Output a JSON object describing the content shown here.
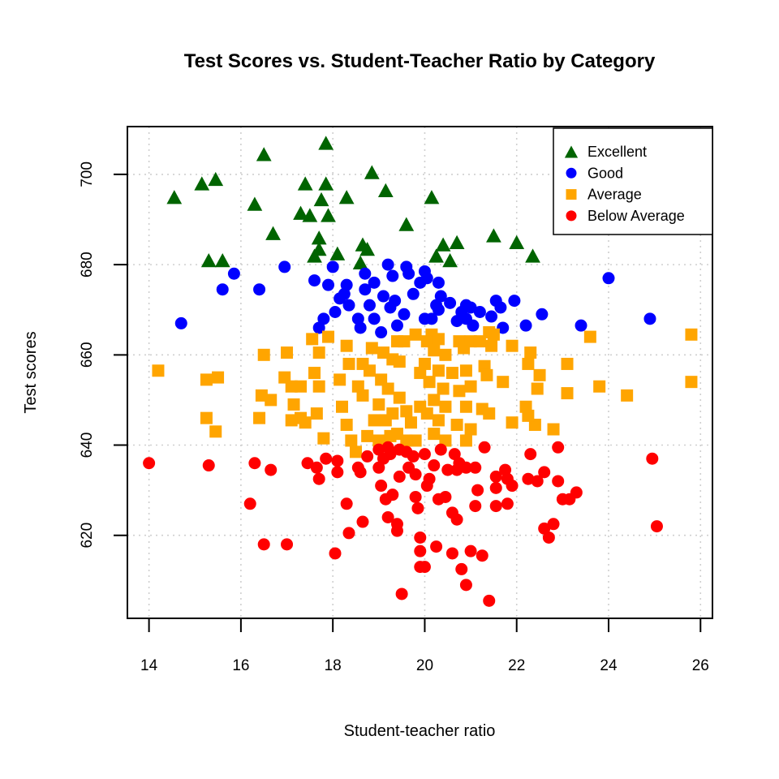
{
  "title": "Test Scores vs. Student-Teacher Ratio by Category",
  "colors": {
    "excellent": "#006400",
    "good": "#0000FF",
    "average": "#FFA500",
    "below_average": "#FF0000",
    "grid": "#CFCFCF",
    "axis": "#000000",
    "background": "#FFFFFF"
  },
  "chart_data": {
    "type": "scatter",
    "title": "Test Scores vs. Student-Teacher Ratio by Category",
    "xlabel": "Student-teacher ratio",
    "ylabel": "Test scores",
    "xlim": [
      13.53,
      26.26
    ],
    "ylim": [
      601.6,
      710.6
    ],
    "x_ticks": [
      14,
      16,
      18,
      20,
      22,
      24,
      26
    ],
    "y_ticks": [
      620,
      640,
      660,
      680,
      700
    ],
    "grid": true,
    "grid_style": "dotted",
    "legend_position": "top-right",
    "series": [
      {
        "name": "Excellent",
        "marker": "triangle",
        "color": "#006400",
        "points": [
          [
            17.85,
            707
          ],
          [
            16.5,
            704.5
          ],
          [
            18.85,
            700.5
          ],
          [
            15.15,
            698
          ],
          [
            15.45,
            699
          ],
          [
            17.4,
            698
          ],
          [
            17.85,
            698
          ],
          [
            19.15,
            696.5
          ],
          [
            14.55,
            695
          ],
          [
            20.15,
            695
          ],
          [
            16.3,
            693.5
          ],
          [
            18.3,
            695
          ],
          [
            17.75,
            694.5
          ],
          [
            17.3,
            691.5
          ],
          [
            17.5,
            691
          ],
          [
            17.9,
            691
          ],
          [
            19.6,
            689
          ],
          [
            16.7,
            687
          ],
          [
            17.7,
            686
          ],
          [
            21.5,
            686.5
          ],
          [
            18.65,
            684.5
          ],
          [
            18.75,
            683.5
          ],
          [
            20.4,
            684.5
          ],
          [
            20.7,
            685
          ],
          [
            22.0,
            685
          ],
          [
            15.3,
            681
          ],
          [
            15.6,
            681
          ],
          [
            17.6,
            682
          ],
          [
            18.1,
            682.5
          ],
          [
            18.6,
            680.5
          ],
          [
            20.25,
            682
          ],
          [
            20.55,
            681
          ],
          [
            22.35,
            682
          ],
          [
            17.7,
            683.5
          ]
        ]
      },
      {
        "name": "Good",
        "marker": "circle",
        "color": "#0000FF",
        "points": [
          [
            15.85,
            678
          ],
          [
            16.95,
            679.5
          ],
          [
            18.0,
            679.5
          ],
          [
            17.6,
            676.5
          ],
          [
            17.9,
            675.5
          ],
          [
            18.3,
            675.5
          ],
          [
            18.7,
            678
          ],
          [
            18.9,
            676
          ],
          [
            19.2,
            680
          ],
          [
            19.3,
            677.5
          ],
          [
            19.6,
            679.5
          ],
          [
            19.65,
            678
          ],
          [
            15.6,
            674.5
          ],
          [
            16.4,
            674.5
          ],
          [
            18.7,
            674.5
          ],
          [
            19.9,
            676
          ],
          [
            14.7,
            667
          ],
          [
            17.8,
            668
          ],
          [
            17.7,
            666
          ],
          [
            18.05,
            669.5
          ],
          [
            18.15,
            672.5
          ],
          [
            18.25,
            673.5
          ],
          [
            18.35,
            671
          ],
          [
            18.55,
            668
          ],
          [
            18.6,
            666
          ],
          [
            18.8,
            671
          ],
          [
            18.9,
            668
          ],
          [
            19.05,
            665
          ],
          [
            19.1,
            673
          ],
          [
            19.25,
            670.5
          ],
          [
            19.35,
            672
          ],
          [
            19.4,
            666.5
          ],
          [
            19.55,
            669
          ],
          [
            19.75,
            673.5
          ],
          [
            20.0,
            678.5
          ],
          [
            20.05,
            677
          ],
          [
            20.3,
            676
          ],
          [
            20.35,
            673
          ],
          [
            20.25,
            671
          ],
          [
            20.55,
            671.5
          ],
          [
            20.0,
            668
          ],
          [
            20.15,
            668
          ],
          [
            20.3,
            670
          ],
          [
            20.7,
            667.5
          ],
          [
            20.9,
            671
          ],
          [
            21.0,
            670.5
          ],
          [
            20.8,
            669.5
          ],
          [
            21.05,
            666.5
          ],
          [
            20.9,
            668
          ],
          [
            21.2,
            669.5
          ],
          [
            21.45,
            668.5
          ],
          [
            21.55,
            672
          ],
          [
            21.65,
            670.5
          ],
          [
            21.7,
            666
          ],
          [
            21.95,
            672
          ],
          [
            22.2,
            666.5
          ],
          [
            22.55,
            669
          ],
          [
            23.4,
            666.5
          ],
          [
            24.0,
            677
          ],
          [
            24.9,
            668
          ]
        ]
      },
      {
        "name": "Average",
        "marker": "square",
        "color": "#FFA500",
        "points": [
          [
            14.2,
            656.5
          ],
          [
            15.25,
            654.5
          ],
          [
            15.5,
            655
          ],
          [
            15.25,
            646
          ],
          [
            15.45,
            643
          ],
          [
            16.5,
            660
          ],
          [
            17.0,
            660.5
          ],
          [
            16.45,
            651
          ],
          [
            16.65,
            650
          ],
          [
            16.4,
            646
          ],
          [
            16.95,
            655
          ],
          [
            17.1,
            653
          ],
          [
            17.3,
            653
          ],
          [
            17.15,
            649
          ],
          [
            17.3,
            646
          ],
          [
            17.1,
            645.5
          ],
          [
            17.4,
            645
          ],
          [
            17.55,
            663.5
          ],
          [
            17.7,
            660.5
          ],
          [
            17.9,
            664
          ],
          [
            17.6,
            656
          ],
          [
            17.7,
            653
          ],
          [
            17.65,
            647
          ],
          [
            17.8,
            641.5
          ],
          [
            18.3,
            662
          ],
          [
            18.35,
            658
          ],
          [
            18.65,
            658
          ],
          [
            18.15,
            654.5
          ],
          [
            18.2,
            648.5
          ],
          [
            18.3,
            644.5
          ],
          [
            18.4,
            641
          ],
          [
            18.5,
            638.5
          ],
          [
            18.85,
            661.5
          ],
          [
            19.1,
            660.5
          ],
          [
            19.4,
            663
          ],
          [
            19.55,
            663
          ],
          [
            19.8,
            664.5
          ],
          [
            18.8,
            656.5
          ],
          [
            19.05,
            654.5
          ],
          [
            19.3,
            659
          ],
          [
            19.45,
            658.5
          ],
          [
            19.2,
            652.5
          ],
          [
            19.45,
            650.5
          ],
          [
            19.0,
            649
          ],
          [
            18.9,
            645.5
          ],
          [
            19.15,
            645.5
          ],
          [
            19.3,
            647
          ],
          [
            19.6,
            647.5
          ],
          [
            19.9,
            648.5
          ],
          [
            19.7,
            645
          ],
          [
            19.4,
            642.5
          ],
          [
            19.0,
            641
          ],
          [
            19.8,
            641
          ],
          [
            18.55,
            653
          ],
          [
            18.65,
            651
          ],
          [
            19.9,
            656
          ],
          [
            20.15,
            664.5
          ],
          [
            20.3,
            663.5
          ],
          [
            20.05,
            663
          ],
          [
            20.75,
            663
          ],
          [
            21.0,
            663
          ],
          [
            21.2,
            663
          ],
          [
            21.4,
            665
          ],
          [
            20.2,
            661
          ],
          [
            20.45,
            660
          ],
          [
            20.85,
            661.5
          ],
          [
            21.45,
            662
          ],
          [
            20.0,
            658
          ],
          [
            20.3,
            656.5
          ],
          [
            20.6,
            656
          ],
          [
            20.9,
            656.5
          ],
          [
            21.3,
            657.5
          ],
          [
            21.35,
            655.5
          ],
          [
            21.7,
            654
          ],
          [
            20.1,
            654
          ],
          [
            20.4,
            652.5
          ],
          [
            20.75,
            652
          ],
          [
            21.0,
            653
          ],
          [
            20.2,
            650
          ],
          [
            20.45,
            648.5
          ],
          [
            20.9,
            648.5
          ],
          [
            21.25,
            648
          ],
          [
            21.4,
            647
          ],
          [
            20.05,
            647
          ],
          [
            20.3,
            645.5
          ],
          [
            20.7,
            644.5
          ],
          [
            21.0,
            643.5
          ],
          [
            20.2,
            642.5
          ],
          [
            20.45,
            641
          ],
          [
            20.9,
            641
          ],
          [
            21.5,
            664.5
          ],
          [
            21.9,
            662
          ],
          [
            22.3,
            660.5
          ],
          [
            22.25,
            658
          ],
          [
            22.5,
            655.5
          ],
          [
            22.45,
            652.5
          ],
          [
            23.1,
            658
          ],
          [
            23.1,
            651.5
          ],
          [
            22.4,
            644.5
          ],
          [
            22.8,
            643.5
          ],
          [
            21.9,
            645
          ],
          [
            22.2,
            648.5
          ],
          [
            22.25,
            646.5
          ],
          [
            23.6,
            664
          ],
          [
            23.8,
            653
          ],
          [
            24.4,
            651
          ],
          [
            25.8,
            664.5
          ],
          [
            25.8,
            654
          ],
          [
            18.75,
            642
          ],
          [
            19.25,
            642
          ],
          [
            19.6,
            641
          ]
        ]
      },
      {
        "name": "Below Average",
        "marker": "circle",
        "color": "#FF0000",
        "points": [
          [
            14.0,
            636
          ],
          [
            15.3,
            635.5
          ],
          [
            16.3,
            636
          ],
          [
            16.65,
            634.5
          ],
          [
            16.2,
            627
          ],
          [
            16.5,
            618
          ],
          [
            17.0,
            618
          ],
          [
            17.45,
            636
          ],
          [
            17.65,
            635
          ],
          [
            17.85,
            637
          ],
          [
            18.1,
            636.5
          ],
          [
            18.1,
            634
          ],
          [
            18.6,
            634
          ],
          [
            18.55,
            635
          ],
          [
            18.75,
            637.5
          ],
          [
            19.0,
            639
          ],
          [
            19.1,
            637
          ],
          [
            19.25,
            638
          ],
          [
            19.45,
            639
          ],
          [
            19.75,
            637.5
          ],
          [
            20.0,
            638
          ],
          [
            20.2,
            635.5
          ],
          [
            19.8,
            633.5
          ],
          [
            17.7,
            632.5
          ],
          [
            18.3,
            627
          ],
          [
            18.35,
            620.5
          ],
          [
            18.65,
            623
          ],
          [
            19.0,
            635
          ],
          [
            19.05,
            631
          ],
          [
            19.15,
            628
          ],
          [
            19.3,
            629
          ],
          [
            19.2,
            624
          ],
          [
            19.4,
            622.5
          ],
          [
            19.4,
            621
          ],
          [
            19.45,
            633
          ],
          [
            19.65,
            635
          ],
          [
            19.8,
            628.5
          ],
          [
            19.85,
            626
          ],
          [
            19.9,
            619.5
          ],
          [
            19.9,
            616.5
          ],
          [
            19.9,
            613
          ],
          [
            19.5,
            607
          ],
          [
            18.05,
            616
          ],
          [
            20.05,
            631
          ],
          [
            20.1,
            632.5
          ],
          [
            20.3,
            628
          ],
          [
            20.45,
            628.5
          ],
          [
            20.5,
            634.5
          ],
          [
            20.7,
            634.5
          ],
          [
            20.75,
            636
          ],
          [
            20.9,
            635
          ],
          [
            21.1,
            635
          ],
          [
            21.15,
            630
          ],
          [
            20.6,
            625
          ],
          [
            20.7,
            623.5
          ],
          [
            21.1,
            626.5
          ],
          [
            21.55,
            626.5
          ],
          [
            21.55,
            630.5
          ],
          [
            21.55,
            633
          ],
          [
            21.75,
            634.5
          ],
          [
            21.8,
            632.5
          ],
          [
            21.9,
            631
          ],
          [
            21.8,
            627
          ],
          [
            22.25,
            632.5
          ],
          [
            22.45,
            632
          ],
          [
            22.6,
            634
          ],
          [
            22.9,
            632
          ],
          [
            23.0,
            628
          ],
          [
            23.15,
            628
          ],
          [
            23.3,
            629.5
          ],
          [
            22.8,
            622.5
          ],
          [
            22.6,
            621.5
          ],
          [
            22.7,
            619.5
          ],
          [
            24.95,
            637
          ],
          [
            25.05,
            622
          ],
          [
            20.25,
            617.5
          ],
          [
            20.6,
            616
          ],
          [
            21.0,
            616.5
          ],
          [
            21.25,
            615.5
          ],
          [
            20.0,
            613
          ],
          [
            20.8,
            612.5
          ],
          [
            20.9,
            609
          ],
          [
            21.4,
            605.5
          ],
          [
            20.35,
            639
          ],
          [
            20.65,
            638
          ],
          [
            21.3,
            639.5
          ],
          [
            22.3,
            638
          ],
          [
            22.9,
            639.5
          ],
          [
            19.2,
            639.5
          ],
          [
            19.6,
            638.5
          ]
        ]
      }
    ]
  }
}
